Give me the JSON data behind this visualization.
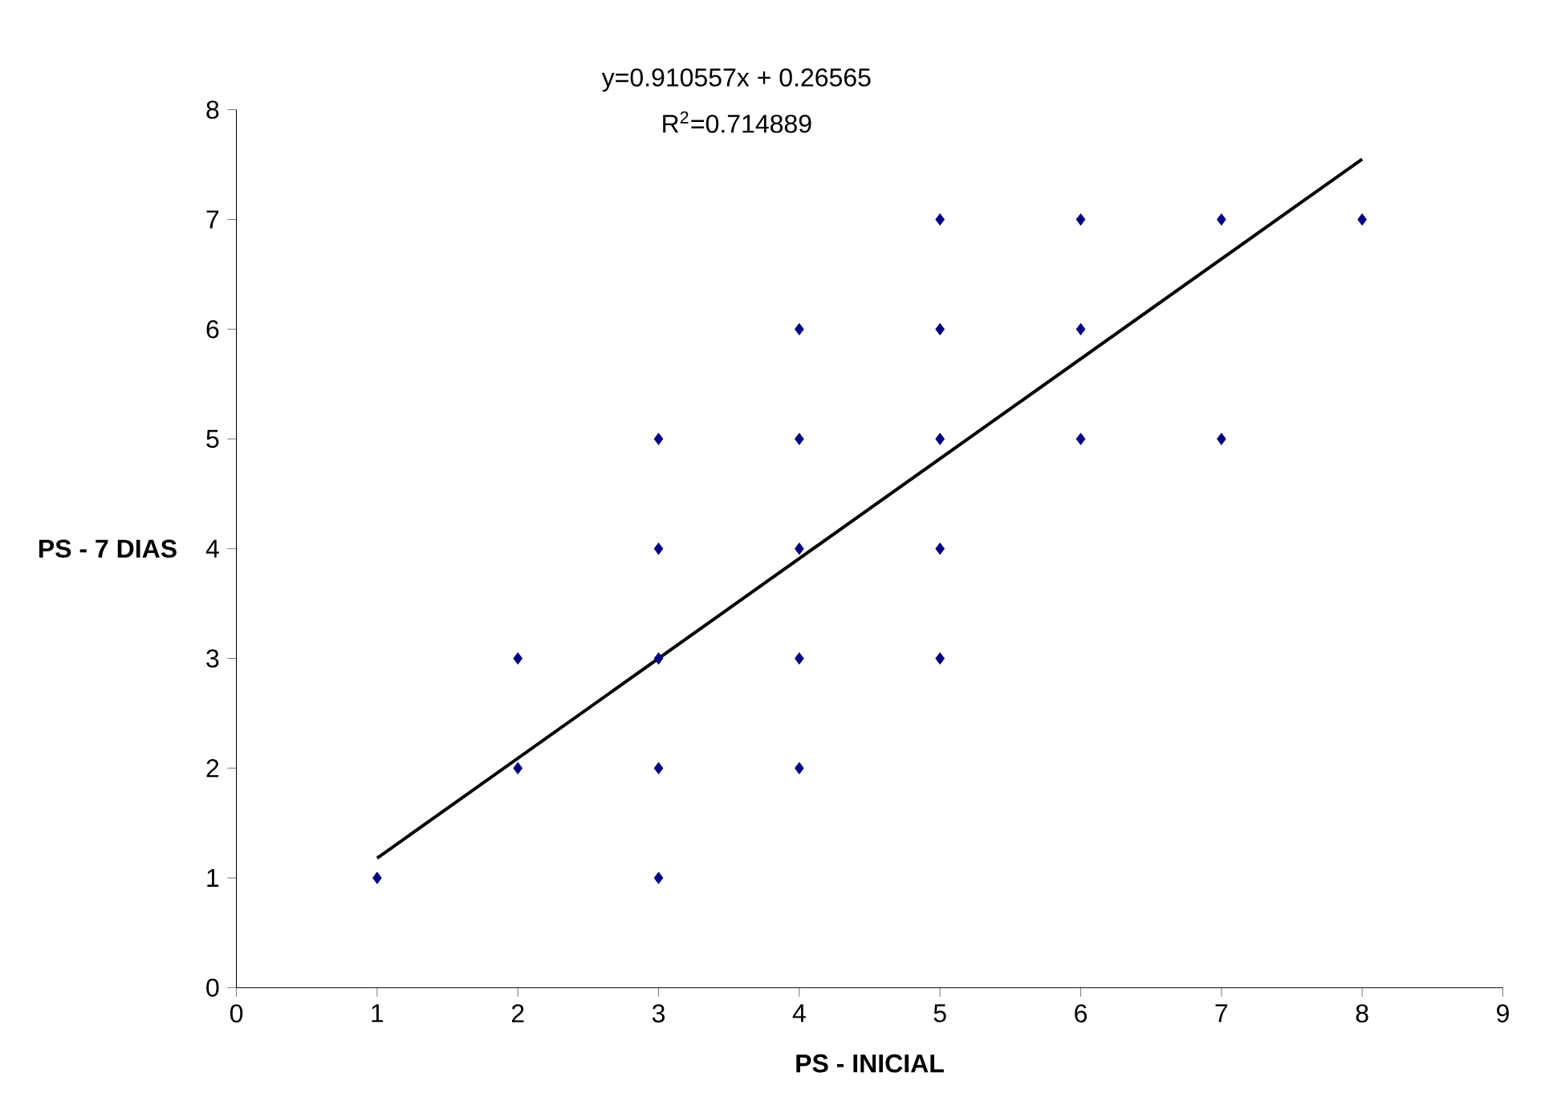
{
  "chart_data": {
    "type": "scatter",
    "xlabel": "PS - INICIAL",
    "ylabel": "PS - 7 DIAS",
    "annotations": [
      "y=0.910557x + 0.26565",
      "R$^{2}$=0.714889"
    ],
    "xlim": [
      0,
      9
    ],
    "ylim": [
      0,
      8
    ],
    "xticks": [
      0,
      1,
      2,
      3,
      4,
      5,
      6,
      7,
      8,
      9
    ],
    "yticks": [
      0,
      1,
      2,
      3,
      4,
      5,
      6,
      7,
      8
    ],
    "grid": false,
    "marker": "diamond",
    "series": [
      {
        "color": "#000080",
        "x": [
          1,
          2,
          2,
          3,
          3,
          3,
          3,
          3,
          4,
          4,
          4,
          4,
          4,
          5,
          5,
          5,
          5,
          5,
          6,
          6,
          6,
          7,
          7,
          8
        ],
        "values": [
          1,
          2,
          3,
          1,
          2,
          3,
          4,
          5,
          2,
          3,
          4,
          5,
          6,
          3,
          4,
          5,
          6,
          7,
          5,
          6,
          7,
          5,
          7,
          7
        ]
      },
      {
        "type": "line",
        "color": "#000000",
        "line_style": "solid",
        "marker": "none",
        "x": [
          1,
          8
        ],
        "values": [
          1.18,
          7.55
        ]
      }
    ]
  }
}
